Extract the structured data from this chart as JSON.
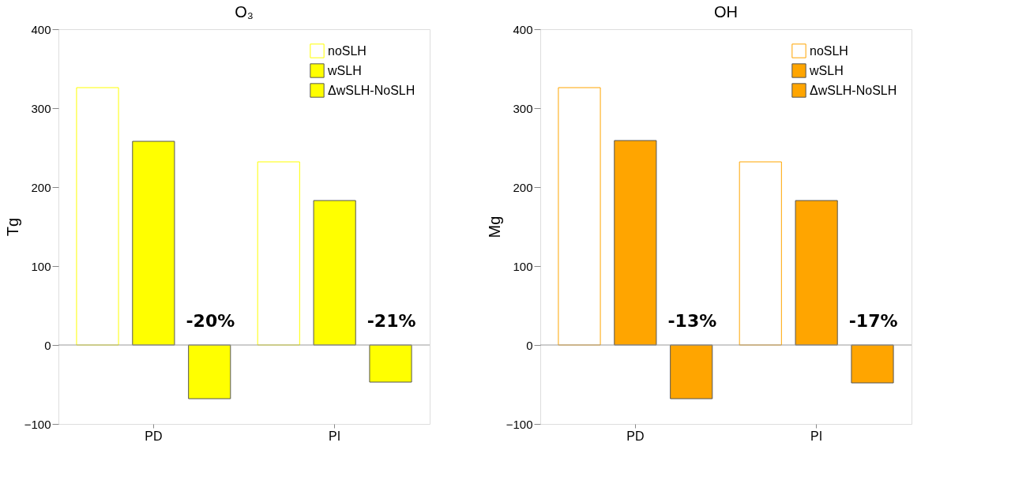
{
  "chart_data": [
    {
      "type": "bar",
      "title": "O₃",
      "ylabel": "Tg",
      "categories": [
        "PD",
        "PI"
      ],
      "series": [
        {
          "name": "noSLH",
          "color": "#ffff00",
          "values": [
            326,
            232
          ]
        },
        {
          "name": "wSLH",
          "color": "#ffff00",
          "values": [
            258,
            183
          ]
        },
        {
          "name": "ΔwSLH-NoSLH",
          "color": "#ffff00",
          "values": [
            -68,
            -47
          ]
        }
      ],
      "ylim": [
        -100,
        400
      ],
      "yticks": [
        -100,
        0,
        100,
        200,
        300,
        400
      ],
      "legend": "top right",
      "grid": false,
      "ref_lines": [
        {
          "axis": "y",
          "value": 0,
          "color": "#999999"
        }
      ],
      "annotations": [
        "-20%",
        "-21%"
      ]
    },
    {
      "type": "bar",
      "title": "OH",
      "ylabel": "Mg",
      "categories": [
        "PD",
        "PI"
      ],
      "series": [
        {
          "name": "noSLH",
          "color": "#ffa500",
          "values": [
            326,
            232
          ]
        },
        {
          "name": "wSLH",
          "color": "#ffa500",
          "values": [
            259,
            183
          ]
        },
        {
          "name": "ΔwSLH-NoSLH",
          "color": "#ffa500",
          "values": [
            -68,
            -48
          ]
        }
      ],
      "ylim": [
        -100,
        400
      ],
      "yticks": [
        -100,
        0,
        100,
        200,
        300,
        400
      ],
      "legend": "top right",
      "grid": false,
      "ref_lines": [
        {
          "axis": "y",
          "value": 0,
          "color": "#999999"
        }
      ],
      "annotations": [
        "-13%",
        "-17%"
      ]
    }
  ]
}
